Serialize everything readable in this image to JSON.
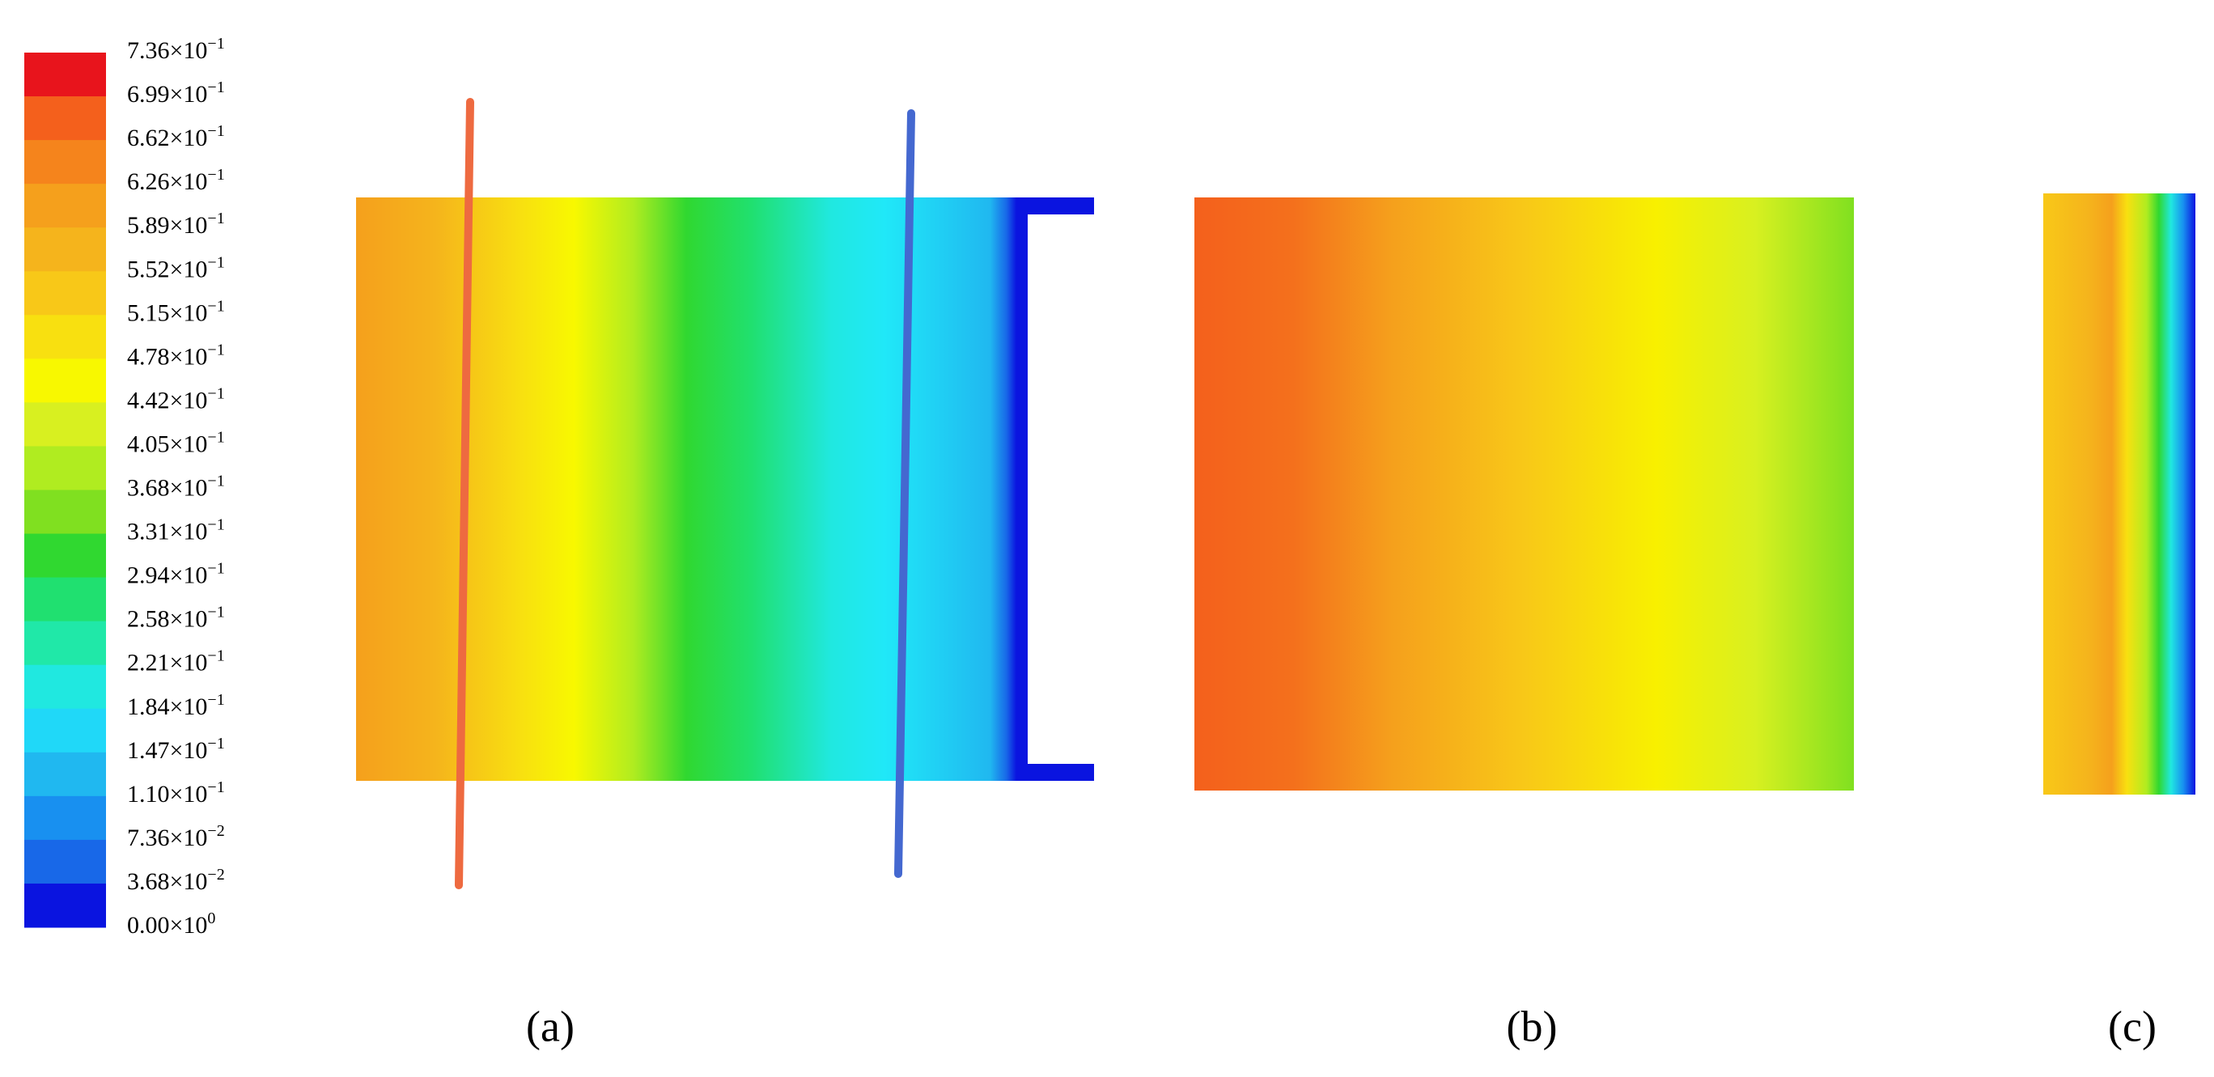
{
  "legend": {
    "labels": [
      {
        "base": "7.36×10",
        "exp": "−1"
      },
      {
        "base": "6.99×10",
        "exp": "−1"
      },
      {
        "base": "6.62×10",
        "exp": "−1"
      },
      {
        "base": "6.26×10",
        "exp": "−1"
      },
      {
        "base": "5.89×10",
        "exp": "−1"
      },
      {
        "base": "5.52×10",
        "exp": "−1"
      },
      {
        "base": "5.15×10",
        "exp": "−1"
      },
      {
        "base": "4.78×10",
        "exp": "−1"
      },
      {
        "base": "4.42×10",
        "exp": "−1"
      },
      {
        "base": "4.05×10",
        "exp": "−1"
      },
      {
        "base": "3.68×10",
        "exp": "−1"
      },
      {
        "base": "3.31×10",
        "exp": "−1"
      },
      {
        "base": "2.94×10",
        "exp": "−1"
      },
      {
        "base": "2.58×10",
        "exp": "−1"
      },
      {
        "base": "2.21×10",
        "exp": "−1"
      },
      {
        "base": "1.84×10",
        "exp": "−1"
      },
      {
        "base": "1.47×10",
        "exp": "−1"
      },
      {
        "base": "1.10×10",
        "exp": "−1"
      },
      {
        "base": "7.36×10",
        "exp": "−2"
      },
      {
        "base": "3.68×10",
        "exp": "−2"
      },
      {
        "base": "0.00×10",
        "exp": "0"
      }
    ],
    "colors": [
      "#e8141c",
      "#f4601c",
      "#f5841c",
      "#f5a01c",
      "#f5b41c",
      "#f8c818",
      "#f8e010",
      "#f8f800",
      "#d8f020",
      "#b0ec20",
      "#80e020",
      "#30d830",
      "#20e070",
      "#20e8a8",
      "#20e8e0",
      "#20d8f8",
      "#20b8f0",
      "#1890f0",
      "#1868e8",
      "#0a14e0"
    ]
  },
  "panels": [
    "(a)",
    "(b)",
    "(c)"
  ]
}
